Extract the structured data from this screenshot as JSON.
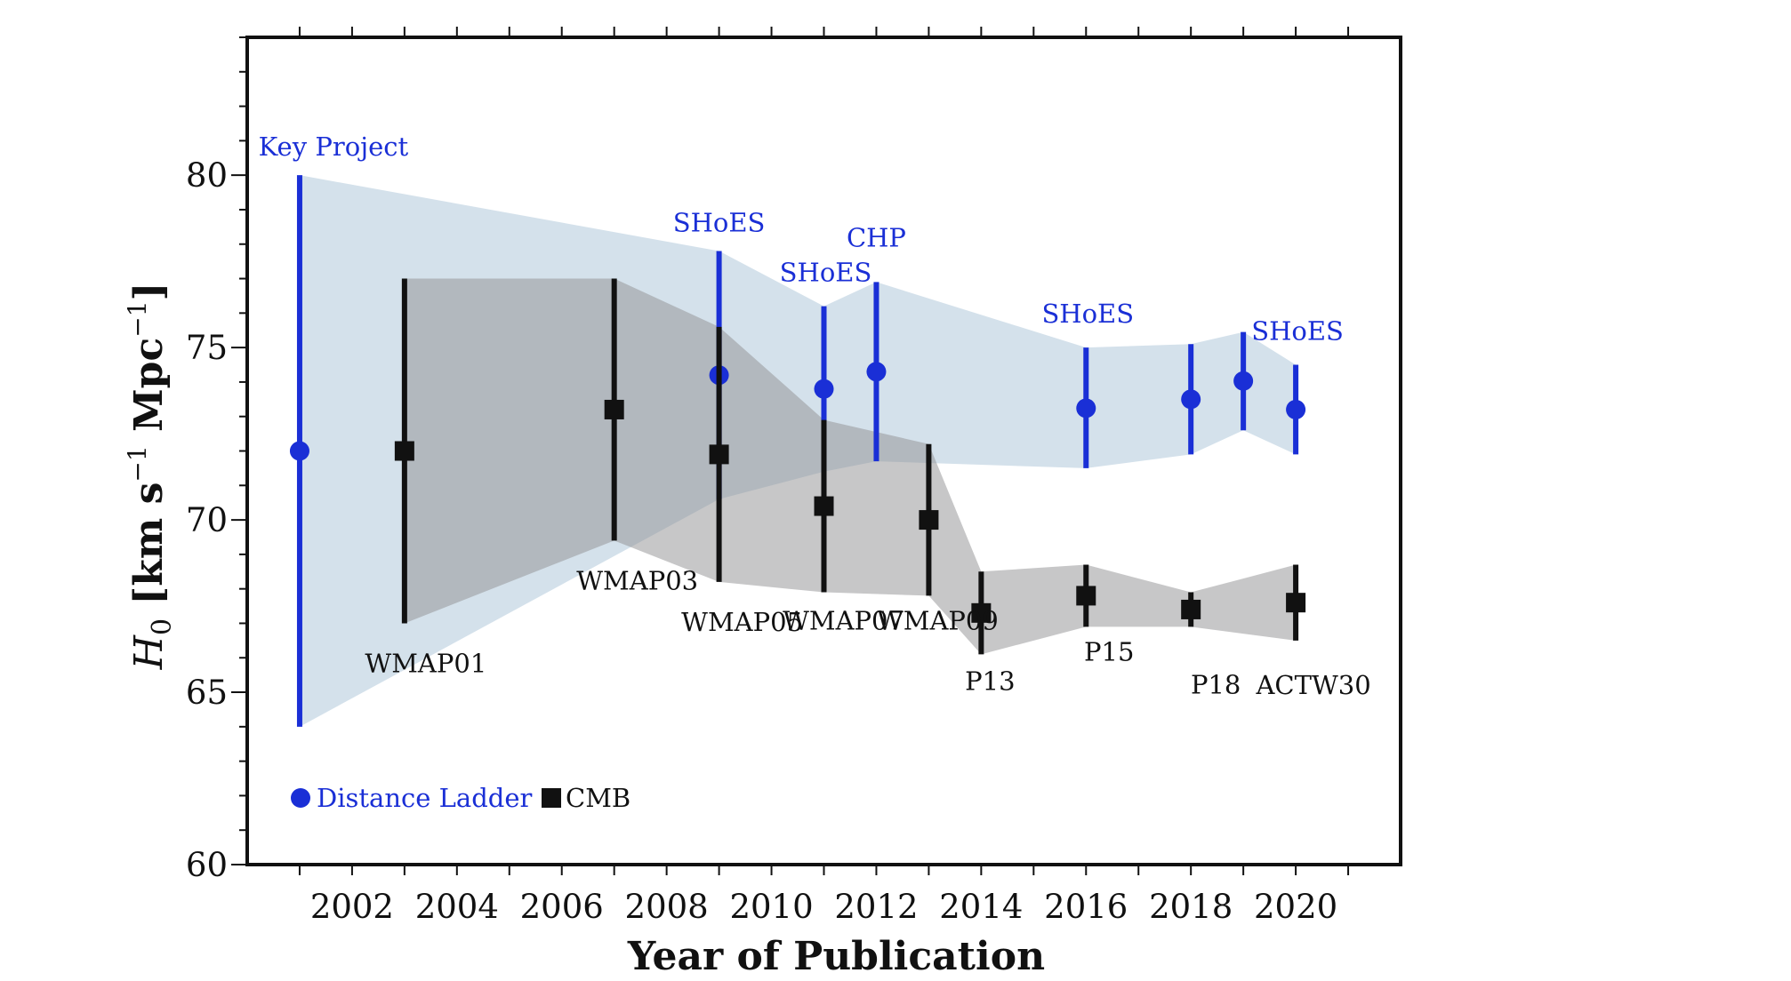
{
  "chart_data": {
    "type": "scatter",
    "title": "",
    "xlabel": "Year of Publication",
    "ylabel_parts": [
      "H",
      "0",
      " [km s",
      "−1",
      " Mpc",
      "−1",
      "]"
    ],
    "xlim": [
      2000,
      2022
    ],
    "ylim": [
      60,
      84
    ],
    "x_ticks": [
      2002,
      2004,
      2006,
      2008,
      2010,
      2012,
      2014,
      2016,
      2018,
      2020
    ],
    "y_ticks": [
      60,
      65,
      70,
      75,
      80
    ],
    "legend": {
      "position": "lower-left"
    },
    "colors": {
      "ladder": "#1a2fd6",
      "cmb": "#111111",
      "ladder_band": "#c9d9e6",
      "cmb_band": "#8f8f91"
    },
    "series": [
      {
        "name": "Distance Ladder",
        "marker": "circle",
        "points": [
          {
            "x": 2001,
            "y": 72.0,
            "err_low": 64.0,
            "err_high": 80.0,
            "label": "Key Project"
          },
          {
            "x": 2009,
            "y": 74.2,
            "err_low": 70.6,
            "err_high": 77.8,
            "label": "SHoES"
          },
          {
            "x": 2011,
            "y": 73.8,
            "err_low": 71.4,
            "err_high": 76.2,
            "label": "SHoES"
          },
          {
            "x": 2012,
            "y": 74.3,
            "err_low": 71.7,
            "err_high": 76.9,
            "label": "CHP"
          },
          {
            "x": 2016,
            "y": 73.24,
            "err_low": 71.5,
            "err_high": 75.0,
            "label": "SHoES"
          },
          {
            "x": 2018,
            "y": 73.5,
            "err_low": 71.9,
            "err_high": 75.1,
            "label": ""
          },
          {
            "x": 2019,
            "y": 74.03,
            "err_low": 72.6,
            "err_high": 75.45,
            "label": ""
          },
          {
            "x": 2020,
            "y": 73.2,
            "err_low": 71.9,
            "err_high": 74.5,
            "label": "SHoES"
          }
        ]
      },
      {
        "name": "CMB",
        "marker": "square",
        "points": [
          {
            "x": 2003,
            "y": 72.0,
            "err_low": 67.0,
            "err_high": 77.0,
            "label": "WMAP01"
          },
          {
            "x": 2007,
            "y": 73.2,
            "err_low": 69.4,
            "err_high": 77.0,
            "label": "WMAP03"
          },
          {
            "x": 2009,
            "y": 71.9,
            "err_low": 68.2,
            "err_high": 75.6,
            "label": "WMAP05"
          },
          {
            "x": 2011,
            "y": 70.4,
            "err_low": 67.9,
            "err_high": 72.9,
            "label": "WMAP07"
          },
          {
            "x": 2013,
            "y": 70.0,
            "err_low": 67.8,
            "err_high": 72.2,
            "label": "WMAP09"
          },
          {
            "x": 2014,
            "y": 67.3,
            "err_low": 66.1,
            "err_high": 68.5,
            "label": "P13"
          },
          {
            "x": 2016,
            "y": 67.8,
            "err_low": 66.9,
            "err_high": 68.7,
            "label": "P15"
          },
          {
            "x": 2018,
            "y": 67.4,
            "err_low": 66.9,
            "err_high": 67.9,
            "label": "P18"
          },
          {
            "x": 2020,
            "y": 67.6,
            "err_low": 66.5,
            "err_high": 68.7,
            "label": "ACTW30"
          }
        ]
      }
    ]
  }
}
